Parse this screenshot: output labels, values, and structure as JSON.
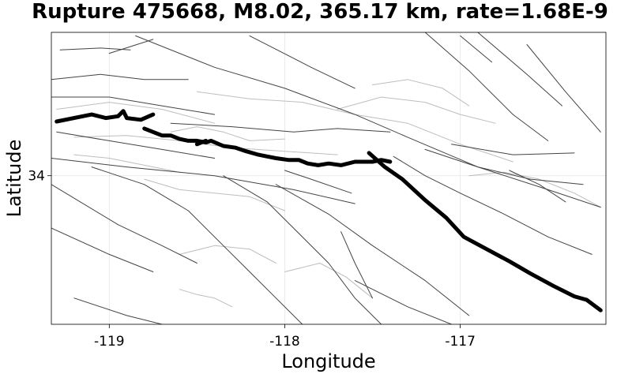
{
  "chart_data": {
    "type": "line",
    "title": "Rupture 475668, M8.02, 365.17 km, rate=1.68E-9",
    "xlabel": "Longitude",
    "ylabel": "Latitude",
    "xlim": [
      -119.33,
      -116.17
    ],
    "ylim": [
      33.15,
      34.82
    ],
    "xticks": [
      -119,
      -118,
      -117
    ],
    "xtick_labels": [
      "-119",
      "-118",
      "-117"
    ],
    "yticks": [
      34
    ],
    "ytick_labels": [
      "34"
    ],
    "grid": true,
    "colors": {
      "rupture": "#000000",
      "faults": "#444444",
      "subsections": "#bdbdbd",
      "grid": "#e6e6e6"
    },
    "series": [
      {
        "name": "rupture-west",
        "style": "rupture",
        "points": [
          [
            -119.3,
            34.31
          ],
          [
            -119.1,
            34.35
          ],
          [
            -119.02,
            34.33
          ],
          [
            -118.95,
            34.34
          ],
          [
            -118.92,
            34.37
          ],
          [
            -118.9,
            34.33
          ],
          [
            -118.82,
            34.32
          ],
          [
            -118.75,
            34.35
          ]
        ]
      },
      {
        "name": "rupture-central",
        "style": "rupture",
        "points": [
          [
            -118.8,
            34.27
          ],
          [
            -118.75,
            34.25
          ],
          [
            -118.7,
            34.23
          ],
          [
            -118.65,
            34.23
          ],
          [
            -118.6,
            34.21
          ],
          [
            -118.55,
            34.2
          ],
          [
            -118.5,
            34.2
          ],
          [
            -118.45,
            34.19
          ],
          [
            -118.42,
            34.2
          ],
          [
            -118.35,
            34.17
          ],
          [
            -118.28,
            34.16
          ],
          [
            -118.22,
            34.14
          ],
          [
            -118.15,
            34.12
          ],
          [
            -118.1,
            34.11
          ],
          [
            -118.05,
            34.1
          ],
          [
            -117.98,
            34.09
          ],
          [
            -117.92,
            34.09
          ],
          [
            -117.87,
            34.07
          ],
          [
            -117.81,
            34.06
          ],
          [
            -117.75,
            34.07
          ],
          [
            -117.68,
            34.06
          ],
          [
            -117.6,
            34.08
          ],
          [
            -117.55,
            34.08
          ],
          [
            -117.5,
            34.08
          ],
          [
            -117.45,
            34.09
          ],
          [
            -117.4,
            34.08
          ]
        ]
      },
      {
        "name": "rupture-central-link",
        "style": "rupture",
        "points": [
          [
            -118.5,
            34.18
          ],
          [
            -118.45,
            34.2
          ]
        ]
      },
      {
        "name": "rupture-east",
        "style": "rupture",
        "points": [
          [
            -117.52,
            34.13
          ],
          [
            -117.43,
            34.05
          ],
          [
            -117.33,
            33.98
          ],
          [
            -117.2,
            33.86
          ],
          [
            -117.08,
            33.76
          ],
          [
            -116.98,
            33.65
          ],
          [
            -116.85,
            33.58
          ],
          [
            -116.72,
            33.51
          ],
          [
            -116.6,
            33.44
          ],
          [
            -116.47,
            33.37
          ],
          [
            -116.35,
            33.31
          ],
          [
            -116.28,
            33.29
          ],
          [
            -116.2,
            33.23
          ]
        ]
      },
      {
        "name": "fault-1",
        "style": "faults",
        "points": [
          [
            -119.33,
            34.1
          ],
          [
            -118.9,
            34.05
          ],
          [
            -118.4,
            34.0
          ],
          [
            -117.95,
            33.92
          ],
          [
            -117.6,
            33.84
          ]
        ]
      },
      {
        "name": "fault-2",
        "style": "faults",
        "points": [
          [
            -119.33,
            33.95
          ],
          [
            -118.95,
            33.72
          ],
          [
            -118.7,
            33.6
          ],
          [
            -118.5,
            33.5
          ]
        ]
      },
      {
        "name": "fault-3",
        "style": "faults",
        "points": [
          [
            -119.33,
            33.7
          ],
          [
            -119.0,
            33.55
          ],
          [
            -118.75,
            33.45
          ]
        ]
      },
      {
        "name": "fault-4",
        "style": "faults",
        "points": [
          [
            -119.2,
            33.3
          ],
          [
            -118.9,
            33.2
          ],
          [
            -118.7,
            33.15
          ]
        ]
      },
      {
        "name": "fault-5",
        "style": "faults",
        "points": [
          [
            -119.1,
            34.05
          ],
          [
            -118.8,
            33.95
          ],
          [
            -118.55,
            33.8
          ],
          [
            -118.35,
            33.6
          ],
          [
            -118.2,
            33.45
          ],
          [
            -118.05,
            33.3
          ],
          [
            -117.9,
            33.15
          ]
        ]
      },
      {
        "name": "fault-6",
        "style": "faults",
        "points": [
          [
            -118.35,
            34.0
          ],
          [
            -118.1,
            33.85
          ],
          [
            -117.95,
            33.7
          ],
          [
            -117.75,
            33.5
          ],
          [
            -117.6,
            33.3
          ],
          [
            -117.45,
            33.15
          ]
        ]
      },
      {
        "name": "fault-7",
        "style": "faults",
        "points": [
          [
            -118.05,
            33.95
          ],
          [
            -117.75,
            33.78
          ],
          [
            -117.5,
            33.6
          ],
          [
            -117.2,
            33.4
          ],
          [
            -116.95,
            33.2
          ]
        ]
      },
      {
        "name": "fault-8",
        "style": "faults",
        "points": [
          [
            -118.85,
            34.8
          ],
          [
            -118.4,
            34.62
          ],
          [
            -118.0,
            34.5
          ],
          [
            -117.6,
            34.35
          ],
          [
            -117.3,
            34.22
          ],
          [
            -116.9,
            34.05
          ],
          [
            -116.5,
            33.92
          ],
          [
            -116.2,
            33.82
          ]
        ]
      },
      {
        "name": "fault-9",
        "style": "faults",
        "points": [
          [
            -118.2,
            34.8
          ],
          [
            -117.85,
            34.62
          ],
          [
            -117.6,
            34.5
          ]
        ]
      },
      {
        "name": "fault-10",
        "style": "faults",
        "points": [
          [
            -117.2,
            34.82
          ],
          [
            -116.95,
            34.6
          ],
          [
            -116.7,
            34.35
          ],
          [
            -116.5,
            34.2
          ]
        ]
      },
      {
        "name": "fault-11",
        "style": "faults",
        "points": [
          [
            -116.9,
            34.82
          ],
          [
            -116.62,
            34.58
          ],
          [
            -116.42,
            34.4
          ]
        ]
      },
      {
        "name": "fault-12",
        "style": "faults",
        "points": [
          [
            -116.62,
            34.75
          ],
          [
            -116.4,
            34.48
          ],
          [
            -116.2,
            34.25
          ]
        ]
      },
      {
        "name": "fault-13",
        "style": "faults",
        "points": [
          [
            -117.0,
            34.8
          ],
          [
            -116.82,
            34.65
          ]
        ]
      },
      {
        "name": "fault-14",
        "style": "faults",
        "points": [
          [
            -117.2,
            34.15
          ],
          [
            -116.9,
            34.05
          ],
          [
            -116.6,
            33.98
          ],
          [
            -116.3,
            33.95
          ]
        ]
      },
      {
        "name": "fault-15",
        "style": "faults",
        "points": [
          [
            -117.05,
            34.18
          ],
          [
            -116.7,
            34.12
          ],
          [
            -116.35,
            34.13
          ]
        ]
      },
      {
        "name": "fault-16",
        "style": "faults",
        "points": [
          [
            -118.65,
            34.3
          ],
          [
            -118.3,
            34.28
          ],
          [
            -117.95,
            34.25
          ],
          [
            -117.7,
            34.27
          ],
          [
            -117.4,
            34.25
          ]
        ]
      },
      {
        "name": "fault-17",
        "style": "faults",
        "points": [
          [
            -119.3,
            34.25
          ],
          [
            -119.0,
            34.2
          ],
          [
            -118.7,
            34.15
          ],
          [
            -118.4,
            34.1
          ]
        ]
      },
      {
        "name": "fault-18",
        "style": "faults",
        "points": [
          [
            -117.38,
            34.11
          ],
          [
            -117.2,
            34.0
          ],
          [
            -117.0,
            33.9
          ],
          [
            -116.75,
            33.78
          ],
          [
            -116.5,
            33.65
          ],
          [
            -116.25,
            33.55
          ]
        ]
      },
      {
        "name": "fault-19",
        "style": "faults",
        "points": [
          [
            -117.6,
            33.4
          ],
          [
            -117.3,
            33.25
          ],
          [
            -117.05,
            33.15
          ]
        ]
      },
      {
        "name": "fault-20",
        "style": "faults",
        "points": [
          [
            -118.0,
            34.03
          ],
          [
            -117.85,
            33.98
          ],
          [
            -117.62,
            33.9
          ]
        ]
      },
      {
        "name": "fault-21",
        "style": "faults",
        "points": [
          [
            -117.68,
            33.68
          ],
          [
            -117.6,
            33.5
          ],
          [
            -117.5,
            33.3
          ]
        ]
      },
      {
        "name": "fault-22",
        "style": "faults",
        "points": [
          [
            -116.72,
            34.03
          ],
          [
            -116.55,
            33.95
          ],
          [
            -116.4,
            33.85
          ]
        ]
      },
      {
        "name": "fault-23",
        "style": "faults",
        "points": [
          [
            -119.33,
            34.45
          ],
          [
            -119.0,
            34.45
          ],
          [
            -118.7,
            34.4
          ],
          [
            -118.4,
            34.35
          ]
        ]
      },
      {
        "name": "fault-24",
        "style": "faults",
        "points": [
          [
            -119.33,
            34.55
          ],
          [
            -119.05,
            34.58
          ],
          [
            -118.8,
            34.55
          ],
          [
            -118.55,
            34.55
          ]
        ]
      },
      {
        "name": "fault-25",
        "style": "faults",
        "points": [
          [
            -119.0,
            34.7
          ],
          [
            -118.75,
            34.78
          ]
        ]
      },
      {
        "name": "fault-26",
        "style": "faults",
        "points": [
          [
            -119.28,
            34.72
          ],
          [
            -119.05,
            34.73
          ],
          [
            -118.88,
            34.72
          ]
        ]
      },
      {
        "name": "grey-1",
        "style": "subsections",
        "points": [
          [
            -118.5,
            34.48
          ],
          [
            -118.2,
            34.44
          ],
          [
            -117.9,
            34.42
          ],
          [
            -117.6,
            34.35
          ],
          [
            -117.3,
            34.3
          ],
          [
            -117.0,
            34.18
          ],
          [
            -116.7,
            34.08
          ]
        ]
      },
      {
        "name": "grey-2",
        "style": "subsections",
        "points": [
          [
            -119.2,
            34.22
          ],
          [
            -118.9,
            34.23
          ],
          [
            -118.6,
            34.2
          ],
          [
            -118.3,
            34.16
          ],
          [
            -118.0,
            34.14
          ],
          [
            -117.7,
            34.12
          ]
        ]
      },
      {
        "name": "grey-3",
        "style": "subsections",
        "points": [
          [
            -119.3,
            34.38
          ],
          [
            -119.0,
            34.42
          ],
          [
            -118.7,
            34.38
          ],
          [
            -118.4,
            34.3
          ]
        ]
      },
      {
        "name": "grey-4",
        "style": "subsections",
        "points": [
          [
            -118.65,
            34.25
          ],
          [
            -118.5,
            34.28
          ],
          [
            -118.35,
            34.25
          ],
          [
            -118.2,
            34.2
          ],
          [
            -118.0,
            34.21
          ]
        ]
      },
      {
        "name": "grey-5",
        "style": "subsections",
        "points": [
          [
            -118.8,
            33.98
          ],
          [
            -118.6,
            33.92
          ],
          [
            -118.4,
            33.9
          ],
          [
            -118.2,
            33.88
          ],
          [
            -118.0,
            33.8
          ]
        ]
      },
      {
        "name": "grey-6",
        "style": "subsections",
        "points": [
          [
            -118.6,
            33.55
          ],
          [
            -118.4,
            33.6
          ],
          [
            -118.2,
            33.58
          ],
          [
            -118.05,
            33.5
          ]
        ]
      },
      {
        "name": "grey-7",
        "style": "subsections",
        "points": [
          [
            -118.0,
            33.45
          ],
          [
            -117.8,
            33.5
          ],
          [
            -117.65,
            33.42
          ],
          [
            -117.5,
            33.3
          ]
        ]
      },
      {
        "name": "grey-8",
        "style": "subsections",
        "points": [
          [
            -117.7,
            34.38
          ],
          [
            -117.45,
            34.45
          ],
          [
            -117.2,
            34.42
          ],
          [
            -117.0,
            34.35
          ],
          [
            -116.8,
            34.3
          ]
        ]
      },
      {
        "name": "grey-9",
        "style": "subsections",
        "points": [
          [
            -117.5,
            34.52
          ],
          [
            -117.3,
            34.55
          ],
          [
            -117.1,
            34.5
          ],
          [
            -116.95,
            34.4
          ]
        ]
      },
      {
        "name": "grey-10",
        "style": "subsections",
        "points": [
          [
            -116.95,
            34.0
          ],
          [
            -116.75,
            34.02
          ],
          [
            -116.55,
            33.98
          ],
          [
            -116.35,
            33.9
          ],
          [
            -116.2,
            33.82
          ]
        ]
      },
      {
        "name": "grey-11",
        "style": "subsections",
        "points": [
          [
            -118.6,
            33.35
          ],
          [
            -118.5,
            33.32
          ],
          [
            -118.4,
            33.3
          ],
          [
            -118.3,
            33.25
          ]
        ]
      },
      {
        "name": "grey-12",
        "style": "subsections",
        "points": [
          [
            -119.2,
            34.12
          ],
          [
            -119.0,
            34.1
          ],
          [
            -118.8,
            34.06
          ],
          [
            -118.6,
            34.02
          ]
        ]
      }
    ]
  }
}
